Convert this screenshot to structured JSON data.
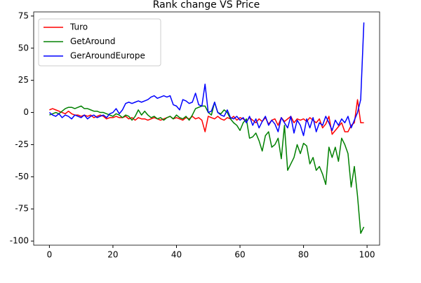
{
  "chart_data": {
    "type": "line",
    "title": "Rank change VS Price",
    "x": [
      0,
      1,
      2,
      3,
      4,
      5,
      6,
      7,
      8,
      9,
      10,
      11,
      12,
      13,
      14,
      15,
      16,
      17,
      18,
      19,
      20,
      21,
      22,
      23,
      24,
      25,
      26,
      27,
      28,
      29,
      30,
      31,
      32,
      33,
      34,
      35,
      36,
      37,
      38,
      39,
      40,
      41,
      42,
      43,
      44,
      45,
      46,
      47,
      48,
      49,
      50,
      51,
      52,
      53,
      54,
      55,
      56,
      57,
      58,
      59,
      60,
      61,
      62,
      63,
      64,
      65,
      66,
      67,
      68,
      69,
      70,
      71,
      72,
      73,
      74,
      75,
      76,
      77,
      78,
      79,
      80,
      81,
      82,
      83,
      84,
      85,
      86,
      87,
      88,
      89,
      90,
      91,
      92,
      93,
      94,
      95,
      96,
      97,
      98,
      99
    ],
    "series": [
      {
        "name": "Turo",
        "color": "#ff0000",
        "values": [
          2,
          3,
          2,
          1,
          0,
          -1,
          1,
          -1,
          -2,
          -2,
          -3,
          -2,
          -3,
          -2,
          -4,
          -3,
          -2,
          -3,
          -5,
          -4,
          -4,
          -3,
          -4,
          -4,
          -3,
          -5,
          -4,
          -6,
          -4,
          -5,
          -5,
          -6,
          -5,
          -4,
          -5,
          -6,
          -5,
          -4,
          -3,
          -5,
          -4,
          -5,
          -6,
          -4,
          -5,
          -3,
          -5,
          -4,
          -6,
          -15,
          -3,
          -4,
          -5,
          -3,
          -5,
          -6,
          -4,
          -5,
          -3,
          -6,
          -4,
          -5,
          -7,
          -4,
          -6,
          -8,
          -5,
          -7,
          -4,
          -9,
          -6,
          -5,
          -10,
          -4,
          -7,
          -5,
          -3,
          -8,
          -5,
          -6,
          -5,
          -7,
          -4,
          -6,
          -8,
          -5,
          -12,
          -9,
          -3,
          -17,
          -14,
          -11,
          -8,
          -15,
          -15,
          -10,
          -8,
          10,
          -8,
          -8
        ]
      },
      {
        "name": "GetAround",
        "color": "#008000",
        "values": [
          -2,
          -1,
          0,
          -1,
          1,
          3,
          4,
          4,
          3,
          4,
          5,
          3,
          3,
          2,
          1,
          1,
          0,
          0,
          -1,
          -2,
          -3,
          -1,
          -2,
          -4,
          -2,
          -3,
          -6,
          -3,
          2,
          -2,
          1,
          -2,
          -4,
          -3,
          -5,
          -4,
          -6,
          -4,
          -3,
          -5,
          -2,
          -4,
          -5,
          -3,
          -6,
          -2,
          3,
          4,
          5,
          5,
          0,
          -2,
          8,
          0,
          -1,
          2,
          0,
          -5,
          -8,
          -10,
          -14,
          -8,
          -5,
          -20,
          -19,
          -16,
          -22,
          -30,
          -18,
          -15,
          -27,
          -25,
          -20,
          -36,
          -10,
          -45,
          -40,
          -35,
          -25,
          -32,
          -24,
          -26,
          -40,
          -35,
          -45,
          -42,
          -48,
          -56,
          -27,
          -35,
          -27,
          -38,
          -20,
          -25,
          -32,
          -58,
          -42,
          -65,
          -94,
          -89
        ]
      },
      {
        "name": "GerAroundEurope",
        "color": "#0000ff",
        "values": [
          0,
          -2,
          -3,
          -1,
          -4,
          -2,
          -3,
          -5,
          -2,
          -3,
          -4,
          -2,
          -5,
          -3,
          -2,
          -4,
          -3,
          -2,
          -4,
          -1,
          0,
          3,
          -1,
          2,
          7,
          8,
          7,
          8,
          9,
          8,
          9,
          10,
          12,
          13,
          11,
          12,
          13,
          12,
          13,
          6,
          5,
          2,
          10,
          9,
          7,
          8,
          15,
          6,
          5,
          22,
          0,
          1,
          8,
          0,
          -2,
          -3,
          2,
          -4,
          -5,
          -3,
          -6,
          -4,
          -8,
          -3,
          -10,
          -5,
          -12,
          -7,
          -3,
          -10,
          -6,
          -9,
          -15,
          -4,
          -8,
          -12,
          -3,
          -16,
          -6,
          -10,
          -18,
          -5,
          -12,
          -4,
          -15,
          -8,
          -10,
          -3,
          -8,
          -14,
          -6,
          -10,
          -5,
          -8,
          -3,
          -12,
          -6,
          0,
          10,
          70
        ]
      }
    ],
    "xlim": [
      -4.95,
      103.95
    ],
    "xticks": [
      0,
      20,
      40,
      60,
      80,
      100
    ],
    "ylim": [
      -103.2,
      78.2
    ],
    "yticks": [
      -100,
      -75,
      -50,
      -25,
      0,
      25,
      50,
      75
    ],
    "legend": "upper left"
  }
}
